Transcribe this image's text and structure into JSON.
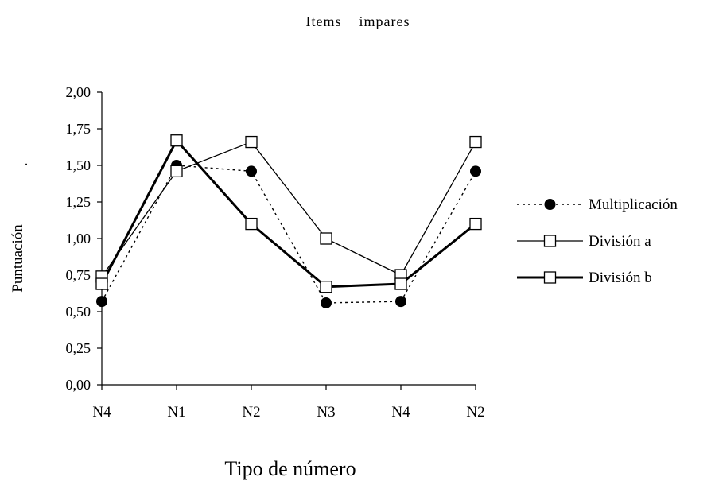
{
  "chart_data": {
    "type": "line",
    "title": "Items    impares",
    "xlabel": "Tipo de número",
    "ylabel": "Puntuación",
    "stray_mark": "·",
    "categories": [
      "N4",
      "N1",
      "N2",
      "N3",
      "N4",
      "N2"
    ],
    "y_tick_labels": [
      "0,00",
      "0,25",
      "0,50",
      "0,75",
      "1,00",
      "1,25",
      "1,50",
      "1,75",
      "2,00"
    ],
    "ylim": [
      0,
      2
    ],
    "y_tick_step": 0.25,
    "grid": false,
    "legend_position": "right",
    "series": [
      {
        "name": "Multiplicación",
        "values": [
          0.57,
          1.5,
          1.46,
          0.56,
          0.57,
          1.46
        ],
        "line_style": "dotted",
        "marker": "filled-circle",
        "color": "#000000"
      },
      {
        "name": "División a",
        "values": [
          0.74,
          1.46,
          1.66,
          1.0,
          0.75,
          1.66
        ],
        "line_style": "solid-thin",
        "marker": "open-square",
        "color": "#000000"
      },
      {
        "name": "División b",
        "values": [
          0.69,
          1.67,
          1.1,
          0.67,
          0.69,
          1.1
        ],
        "line_style": "solid-thick",
        "marker": "open-square",
        "color": "#000000"
      }
    ]
  }
}
